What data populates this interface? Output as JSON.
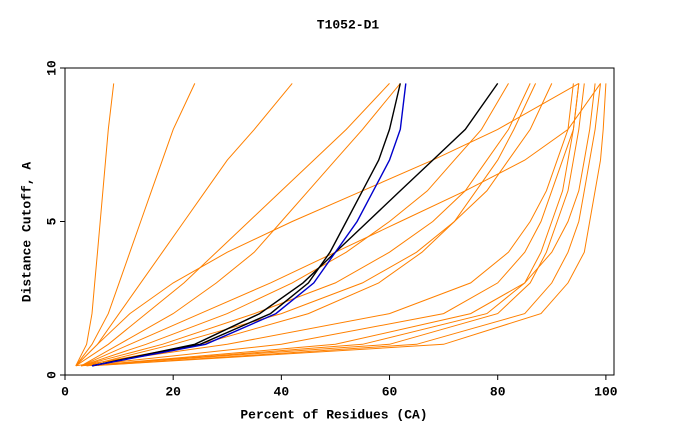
{
  "chart_data": {
    "type": "line",
    "title": "T1052-D1",
    "x_label": "Percent of Residues (CA)",
    "y_label": "Distance Cutoff, A",
    "xlim": [
      0,
      101.5
    ],
    "ylim": [
      0,
      10
    ],
    "xticks": [
      0,
      20,
      40,
      60,
      80,
      100
    ],
    "yticks": [
      0,
      5,
      10
    ],
    "grid": false,
    "y": [
      0.3,
      1,
      2,
      3,
      4,
      5,
      6,
      7,
      8,
      9.5
    ],
    "series": [
      {
        "color": "#ff8000",
        "x": [
          3,
          60,
          80,
          86,
          89,
          91,
          93,
          94,
          95,
          96
        ]
      },
      {
        "color": "#ff8000",
        "x": [
          4,
          55,
          78,
          85,
          88,
          90,
          92,
          93,
          94,
          95
        ]
      },
      {
        "color": "#ff8000",
        "x": [
          5,
          65,
          85,
          90,
          93,
          95,
          96,
          97,
          98,
          99
        ]
      },
      {
        "color": "#ff8000",
        "x": [
          3,
          40,
          70,
          80,
          85,
          88,
          90,
          92,
          94,
          95
        ]
      },
      {
        "color": "#ff8000",
        "x": [
          2,
          30,
          60,
          75,
          82,
          86,
          89,
          91,
          93,
          94
        ]
      },
      {
        "color": "#ff8000",
        "x": [
          4,
          20,
          40,
          55,
          65,
          72,
          78,
          82,
          86,
          90
        ]
      },
      {
        "color": "#ff8000",
        "x": [
          3,
          15,
          30,
          42,
          52,
          60,
          67,
          72,
          77,
          82
        ]
      },
      {
        "color": "#ff8000",
        "x": [
          2,
          8,
          15,
          22,
          28,
          34,
          40,
          46,
          52,
          60
        ]
      },
      {
        "color": "#ff8000",
        "x": [
          2,
          5,
          8,
          10,
          12,
          14,
          16,
          18,
          20,
          24
        ]
      },
      {
        "color": "#ff8000",
        "x": [
          2,
          4,
          5,
          5.5,
          6,
          6.5,
          7,
          7.5,
          8,
          9
        ]
      },
      {
        "color": "#ff8000",
        "x": [
          3,
          10,
          20,
          28,
          35,
          40,
          45,
          50,
          55,
          62
        ]
      },
      {
        "color": "#ff8000",
        "x": [
          3,
          25,
          45,
          58,
          66,
          72,
          76,
          80,
          83,
          87
        ]
      },
      {
        "color": "#ff8000",
        "x": [
          2,
          6,
          10,
          14,
          18,
          22,
          26,
          30,
          35,
          42
        ]
      },
      {
        "color": "#ff8000",
        "x": [
          4,
          50,
          75,
          85,
          90,
          93,
          95,
          96,
          97,
          98
        ]
      },
      {
        "color": "#ff8000",
        "x": [
          3,
          12,
          25,
          38,
          50,
          62,
          74,
          85,
          93,
          99
        ]
      },
      {
        "color": "#ff8000",
        "x": [
          2,
          6,
          12,
          20,
          30,
          42,
          55,
          68,
          80,
          95
        ]
      },
      {
        "color": "#ff8000",
        "x": [
          5,
          70,
          88,
          93,
          96,
          97,
          98,
          99,
          99.5,
          100
        ]
      },
      {
        "color": "#ff8000",
        "x": [
          3,
          18,
          35,
          50,
          60,
          68,
          74,
          78,
          82,
          86
        ]
      },
      {
        "color": "#000000",
        "x": [
          5,
          25,
          38,
          45,
          49,
          52,
          55,
          58,
          60,
          62
        ]
      },
      {
        "color": "#000000",
        "x": [
          5,
          24,
          36,
          44,
          50,
          56,
          62,
          68,
          74,
          80
        ]
      },
      {
        "color": "#0000cc",
        "x": [
          5,
          26,
          39,
          46,
          50,
          54,
          57,
          60,
          62,
          63
        ]
      }
    ]
  }
}
